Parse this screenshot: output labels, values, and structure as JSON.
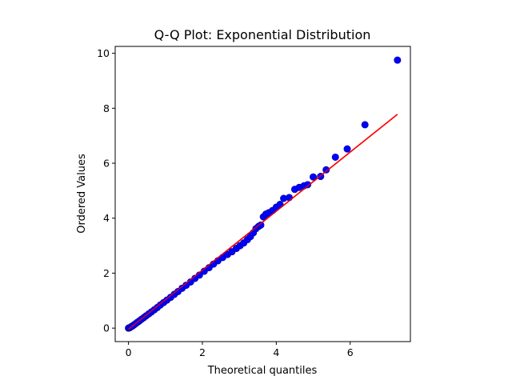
{
  "chart_data": {
    "type": "scatter",
    "title": "Q-Q Plot: Exponential Distribution",
    "xlabel": "Theoretical quantiles",
    "ylabel": "Ordered Values",
    "xlim": [
      -0.36,
      7.63
    ],
    "ylim": [
      -0.49,
      10.25
    ],
    "x_ticks": [
      0,
      2,
      4,
      6
    ],
    "y_ticks": [
      0,
      2,
      4,
      6,
      8,
      10
    ],
    "grid": false,
    "legend": "none",
    "marker_color": "#0000ff",
    "marker_edge_color": "#00008b",
    "fit_line": {
      "color": "#ff0000",
      "points": [
        [
          0,
          -0.04
        ],
        [
          7.28,
          7.78
        ]
      ]
    },
    "points": [
      [
        0.0,
        0.0
      ],
      [
        0.02,
        0.01
      ],
      [
        0.05,
        0.03
      ],
      [
        0.08,
        0.06
      ],
      [
        0.11,
        0.08
      ],
      [
        0.15,
        0.12
      ],
      [
        0.2,
        0.17
      ],
      [
        0.25,
        0.22
      ],
      [
        0.3,
        0.27
      ],
      [
        0.36,
        0.33
      ],
      [
        0.42,
        0.39
      ],
      [
        0.48,
        0.45
      ],
      [
        0.55,
        0.52
      ],
      [
        0.62,
        0.59
      ],
      [
        0.7,
        0.67
      ],
      [
        0.78,
        0.75
      ],
      [
        0.86,
        0.84
      ],
      [
        0.95,
        0.93
      ],
      [
        1.04,
        1.02
      ],
      [
        1.14,
        1.12
      ],
      [
        1.24,
        1.23
      ],
      [
        1.34,
        1.33
      ],
      [
        1.45,
        1.45
      ],
      [
        1.56,
        1.56
      ],
      [
        1.68,
        1.68
      ],
      [
        1.8,
        1.81
      ],
      [
        1.92,
        1.93
      ],
      [
        2.05,
        2.07
      ],
      [
        2.18,
        2.2
      ],
      [
        2.3,
        2.33
      ],
      [
        2.42,
        2.45
      ],
      [
        2.55,
        2.57
      ],
      [
        2.68,
        2.68
      ],
      [
        2.8,
        2.78
      ],
      [
        2.92,
        2.9
      ],
      [
        3.02,
        3.0
      ],
      [
        3.12,
        3.1
      ],
      [
        3.22,
        3.22
      ],
      [
        3.3,
        3.33
      ],
      [
        3.38,
        3.47
      ],
      [
        3.45,
        3.62
      ],
      [
        3.52,
        3.7
      ],
      [
        3.58,
        3.75
      ],
      [
        3.65,
        4.05
      ],
      [
        3.72,
        4.15
      ],
      [
        3.8,
        4.2
      ],
      [
        3.9,
        4.28
      ],
      [
        4.0,
        4.4
      ],
      [
        4.1,
        4.5
      ],
      [
        4.2,
        4.72
      ],
      [
        4.35,
        4.75
      ],
      [
        4.5,
        5.05
      ],
      [
        4.62,
        5.12
      ],
      [
        4.75,
        5.18
      ],
      [
        4.85,
        5.22
      ],
      [
        5.0,
        5.5
      ],
      [
        5.2,
        5.52
      ],
      [
        5.35,
        5.76
      ],
      [
        5.6,
        6.22
      ],
      [
        5.92,
        6.52
      ],
      [
        6.4,
        7.4
      ],
      [
        7.28,
        9.75
      ]
    ]
  }
}
